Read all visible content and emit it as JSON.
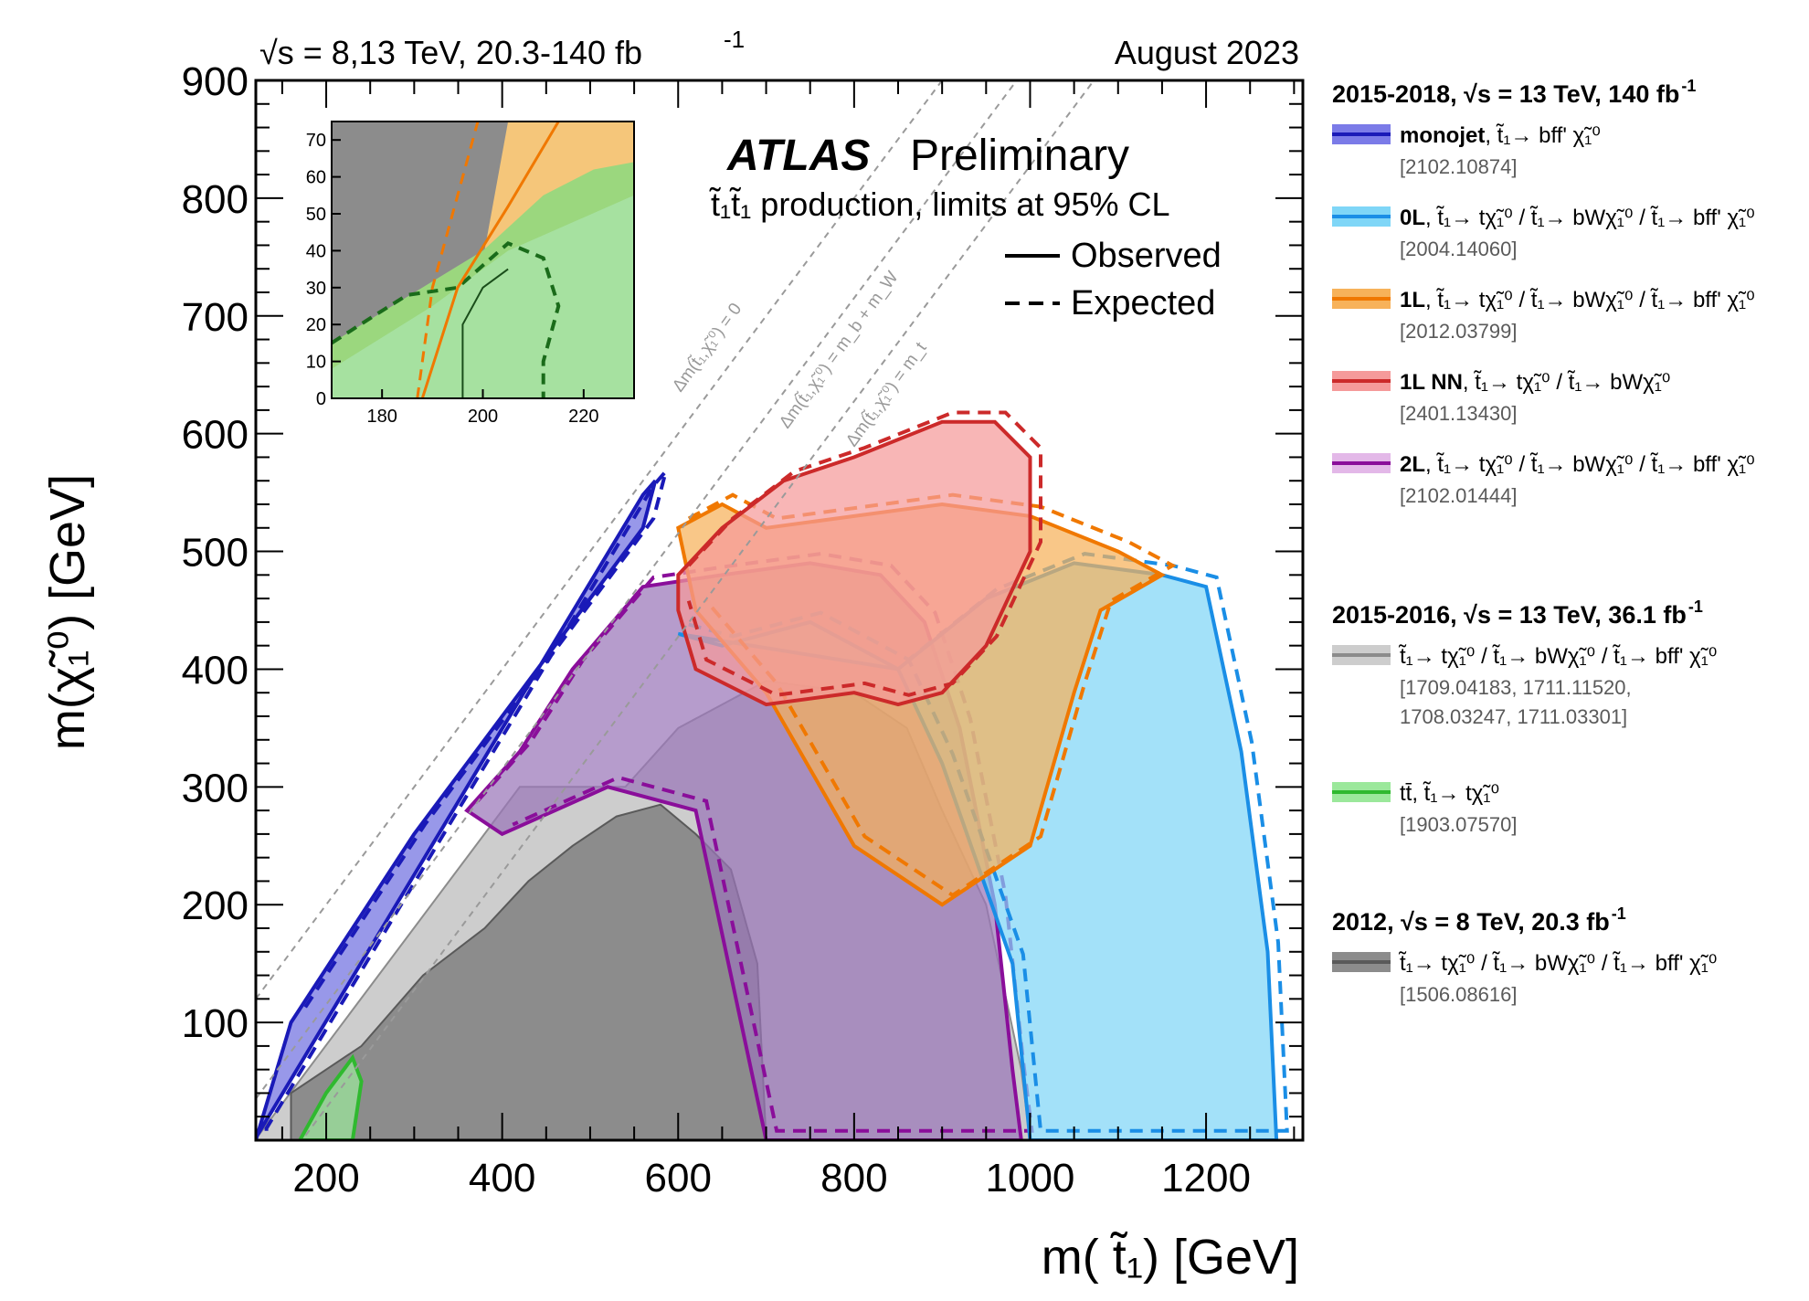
{
  "header": {
    "energy_label": "√s = 8,13 TeV, 20.3-140 fb",
    "energy_sup": "-1",
    "date": "August 2023"
  },
  "labels": {
    "atlas": "ATLAS",
    "preliminary": "Preliminary",
    "production": "t̃₁t̃₁ production, limits at 95% CL",
    "observed": "Observed",
    "expected": "Expected",
    "diag_zero": "Δm(t̃₁,χ̃₁⁰) = 0",
    "diag_bw": "Δm(t̃₁,χ̃₁⁰) = m_b + m_W",
    "diag_t": "Δm(t̃₁,χ̃₁⁰) = m_t"
  },
  "chart_data": {
    "type": "area",
    "title": "ATLAS Preliminary stop pair production exclusion limits at 95% CL",
    "xlabel": "m( t̃₁) [GeV]",
    "ylabel": "m(χ̃₁⁰) [GeV]",
    "xlim": [
      120,
      1310
    ],
    "ylim": [
      0,
      900
    ],
    "x_ticks": [
      200,
      400,
      600,
      800,
      1000,
      1200
    ],
    "y_ticks": [
      100,
      200,
      300,
      400,
      500,
      600,
      700,
      800,
      900
    ],
    "x_tick_labels": [
      "200",
      "400",
      "600",
      "800",
      "1000",
      "1200"
    ],
    "y_tick_labels": [
      "100",
      "200",
      "300",
      "400",
      "500",
      "600",
      "700",
      "800",
      "900"
    ],
    "diagonals": [
      {
        "label": "Δm = 0",
        "offset": 0
      },
      {
        "label": "Δm = m_b + m_W",
        "offset": 84.8
      },
      {
        "label": "Δm = m_t",
        "offset": 172.5
      }
    ],
    "series": [
      {
        "name": "2012 √s = 8 TeV",
        "color": "#8c8c8c",
        "fill": "#8c8c8c",
        "line": "#5a5a5a",
        "points": [
          [
            160,
            0
          ],
          [
            160,
            40
          ],
          [
            240,
            80
          ],
          [
            310,
            140
          ],
          [
            380,
            180
          ],
          [
            430,
            220
          ],
          [
            480,
            250
          ],
          [
            530,
            275
          ],
          [
            580,
            285
          ],
          [
            620,
            260
          ],
          [
            660,
            230
          ],
          [
            690,
            150
          ],
          [
            700,
            0
          ]
        ]
      },
      {
        "name": "2015-2016 √s = 13 TeV",
        "color": "#c8c8c8",
        "fill": "#cdcdcd",
        "line": "#8c8c8c",
        "points": [
          [
            120,
            0
          ],
          [
            120,
            1
          ],
          [
            420,
            300
          ],
          [
            540,
            300
          ],
          [
            600,
            350
          ],
          [
            700,
            390
          ],
          [
            800,
            380
          ],
          [
            860,
            350
          ],
          [
            900,
            280
          ],
          [
            950,
            200
          ],
          [
            990,
            60
          ],
          [
            1000,
            0
          ]
        ]
      },
      {
        "name": "0L",
        "color": "#1e90ff",
        "fill": "#7fd6f7",
        "line": "#1a8ee6",
        "points": [
          [
            600,
            430
          ],
          [
            650,
            420
          ],
          [
            750,
            440
          ],
          [
            850,
            400
          ],
          [
            950,
            460
          ],
          [
            1050,
            490
          ],
          [
            1150,
            480
          ],
          [
            1200,
            470
          ],
          [
            1240,
            330
          ],
          [
            1270,
            160
          ],
          [
            1280,
            0
          ],
          [
            1000,
            0
          ],
          [
            980,
            150
          ],
          [
            900,
            320
          ],
          [
            850,
            400
          ]
        ]
      },
      {
        "name": "1L",
        "color": "#ff8c00",
        "fill": "#f7b25a",
        "line": "#f07800",
        "points": [
          [
            600,
            520
          ],
          [
            650,
            540
          ],
          [
            700,
            520
          ],
          [
            800,
            530
          ],
          [
            900,
            540
          ],
          [
            1000,
            530
          ],
          [
            1100,
            500
          ],
          [
            1150,
            480
          ],
          [
            1080,
            450
          ],
          [
            1050,
            380
          ],
          [
            1000,
            250
          ],
          [
            900,
            200
          ],
          [
            800,
            250
          ],
          [
            700,
            380
          ],
          [
            620,
            450
          ]
        ]
      },
      {
        "name": "1L NN",
        "color": "#d03030",
        "fill": "#f59a9a",
        "line": "#cc2a2a",
        "points": [
          [
            600,
            480
          ],
          [
            650,
            520
          ],
          [
            720,
            560
          ],
          [
            800,
            580
          ],
          [
            900,
            610
          ],
          [
            960,
            610
          ],
          [
            1000,
            580
          ],
          [
            1000,
            500
          ],
          [
            950,
            420
          ],
          [
            900,
            380
          ],
          [
            850,
            370
          ],
          [
            800,
            380
          ],
          [
            700,
            370
          ],
          [
            620,
            400
          ],
          [
            600,
            450
          ]
        ]
      },
      {
        "name": "2L",
        "color": "#8b008b",
        "fill": "#9a76b8",
        "line": "#8a0e9a",
        "points": [
          [
            360,
            280
          ],
          [
            420,
            330
          ],
          [
            480,
            400
          ],
          [
            560,
            470
          ],
          [
            650,
            480
          ],
          [
            750,
            490
          ],
          [
            830,
            480
          ],
          [
            880,
            440
          ],
          [
            920,
            350
          ],
          [
            960,
            200
          ],
          [
            980,
            60
          ],
          [
            990,
            0
          ],
          [
            700,
            0
          ],
          [
            620,
            280
          ],
          [
            520,
            300
          ],
          [
            400,
            260
          ]
        ]
      },
      {
        "name": "monojet",
        "color": "#2020c0",
        "fill": "#7070e0",
        "line": "#1a1ab8",
        "points": [
          [
            120,
            0
          ],
          [
            120,
            2
          ],
          [
            560,
            548
          ],
          [
            574,
            560
          ],
          [
            560,
            520
          ],
          [
            300,
            260
          ],
          [
            160,
            100
          ]
        ]
      },
      {
        "name": "tt̄ (green)",
        "color": "#30c030",
        "fill": "#9be89b",
        "line": "#2fb92f",
        "points": [
          [
            170,
            0
          ],
          [
            200,
            40
          ],
          [
            230,
            70
          ],
          [
            240,
            50
          ],
          [
            230,
            0
          ]
        ]
      }
    ],
    "inset": {
      "xlim": [
        170,
        230
      ],
      "ylim": [
        0,
        75
      ],
      "x_ticks": [
        180,
        200,
        220
      ],
      "y_ticks": [
        0,
        10,
        20,
        30,
        40,
        50,
        60,
        70
      ],
      "x_tick_labels": [
        "180",
        "200",
        "220"
      ],
      "y_tick_labels": [
        "0",
        "10",
        "20",
        "30",
        "40",
        "50",
        "60",
        "70"
      ]
    }
  },
  "legend": {
    "sections": [
      {
        "heading": "2015-2018,  √s = 13 TeV, 140 fb",
        "heading_sup": "-1",
        "items": [
          {
            "bold": "monojet",
            "text": ", t̃₁→ bff' χ̃₁⁰",
            "ref": "[2102.10874]",
            "color": "#7b7be8",
            "line": "#1a1ab8"
          },
          {
            "bold": "0L",
            "text": ", t̃₁→ tχ̃₁⁰ / t̃₁→ bWχ̃₁⁰ / t̃₁→ bff' χ̃₁⁰",
            "ref": "[2004.14060]",
            "color": "#7fd6f7",
            "line": "#1a8ee6"
          },
          {
            "bold": "1L",
            "text": ", t̃₁→ tχ̃₁⁰ /  t̃₁→ bWχ̃₁⁰ / t̃₁→ bff' χ̃₁⁰",
            "ref": "[2012.03799]",
            "color": "#f7b25a",
            "line": "#f07800"
          },
          {
            "bold": "1L NN",
            "text": ", t̃₁→ tχ̃₁⁰ /  t̃₁→ bWχ̃₁⁰",
            "ref": "[2401.13430]",
            "color": "#f59a9a",
            "line": "#cc2a2a"
          },
          {
            "bold": "2L",
            "text": ", t̃₁→ tχ̃₁⁰ /  t̃₁→ bWχ̃₁⁰ / t̃₁→ bff' χ̃₁⁰",
            "ref": "[2102.01444]",
            "color": "#e3b8e8",
            "line": "#8a0e9a"
          }
        ]
      },
      {
        "heading": "2015-2016,  √s = 13 TeV, 36.1 fb",
        "heading_sup": "-1",
        "items": [
          {
            "bold": "",
            "text": "t̃₁→ tχ̃₁⁰ / t̃₁→ bWχ̃₁⁰ / t̃₁→ bff' χ̃₁⁰",
            "ref": "[1709.04183, 1711.11520,",
            "ref2": " 1708.03247, 1711.03301]",
            "color": "#cdcdcd",
            "line": "#8c8c8c"
          },
          {
            "bold": "",
            "text": "tt̄, t̃₁→ tχ̃₁⁰",
            "ref": "[1903.07570]",
            "color": "#9be89b",
            "line": "#2fb92f"
          }
        ]
      },
      {
        "heading": "2012,  √s = 8 TeV, 20.3 fb",
        "heading_sup": "-1",
        "items": [
          {
            "bold": "",
            "text": "t̃₁→ tχ̃₁⁰ / t̃₁→ bWχ̃₁⁰ / t̃₁→ bff' χ̃₁⁰",
            "ref": "[1506.08616]",
            "color": "#8c8c8c",
            "line": "#5a5a5a"
          }
        ]
      }
    ]
  }
}
